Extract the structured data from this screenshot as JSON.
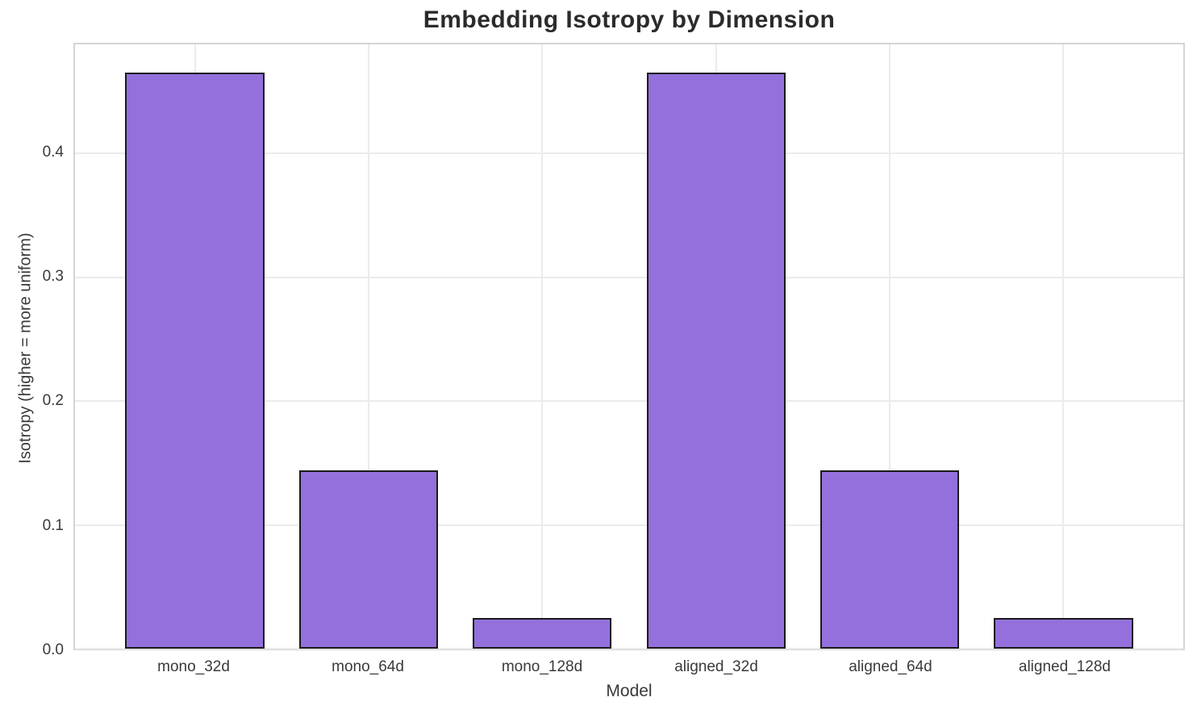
{
  "chart_data": {
    "type": "bar",
    "title": "Embedding Isotropy by Dimension",
    "xlabel": "Model",
    "ylabel": "Isotropy (higher = more uniform)",
    "categories": [
      "mono_32d",
      "mono_64d",
      "mono_128d",
      "aligned_32d",
      "aligned_64d",
      "aligned_128d"
    ],
    "values": [
      0.465,
      0.144,
      0.025,
      0.465,
      0.144,
      0.025
    ],
    "ylim": [
      0,
      0.488
    ],
    "yticks": [
      0.0,
      0.1,
      0.2,
      0.3,
      0.4
    ],
    "ytick_decimals": 1,
    "grid": true,
    "legend_position": "none",
    "x_offset": 0.69,
    "x_span": 6.38,
    "bar_width_units": 0.8
  },
  "colors": {
    "bar_fill": "#9370DB",
    "bar_edge": "#1a1a1a",
    "gridline": "#ebebeb",
    "spine": "#d5d5d5",
    "text": "#3a3a3a",
    "title_text": "#2b2b2b",
    "background": "#ffffff"
  }
}
